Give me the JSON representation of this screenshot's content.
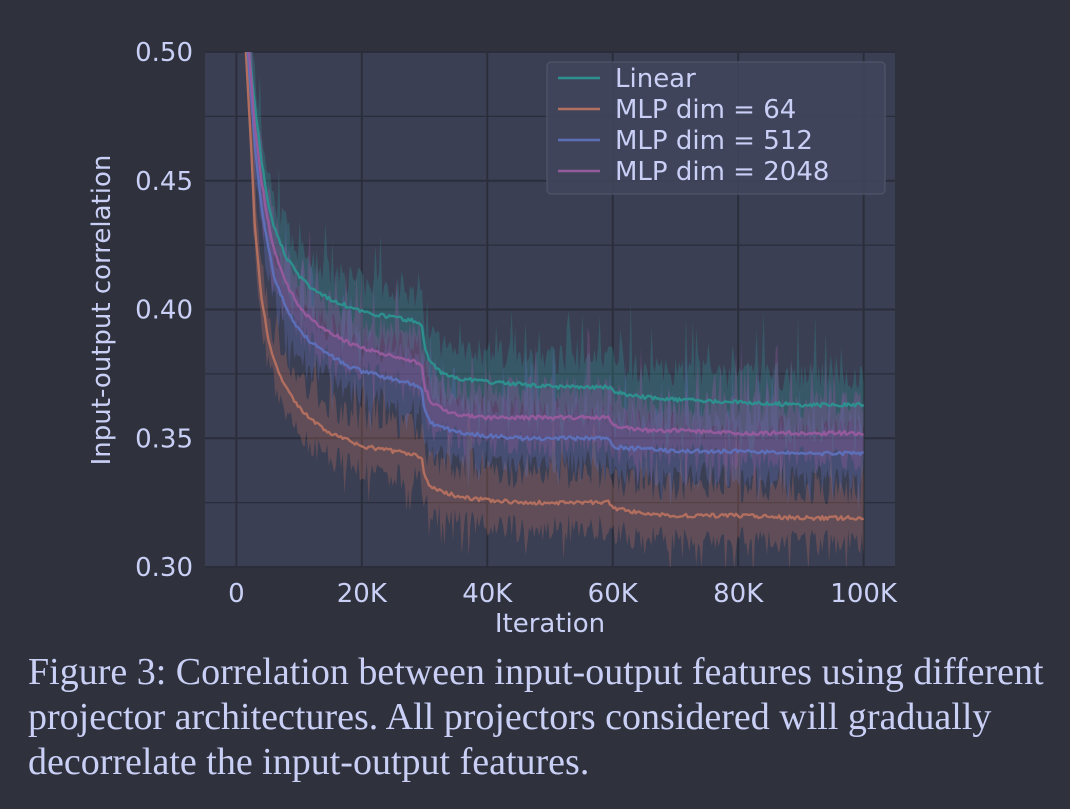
{
  "chart_data": {
    "type": "line",
    "xlabel": "Iteration",
    "ylabel": "Input-output correlation",
    "xlim": [
      -5000,
      105000
    ],
    "ylim": [
      0.3,
      0.5
    ],
    "x_ticks": [
      {
        "value": 0,
        "label": "0"
      },
      {
        "value": 20000,
        "label": "20K"
      },
      {
        "value": 40000,
        "label": "40K"
      },
      {
        "value": 60000,
        "label": "60K"
      },
      {
        "value": 80000,
        "label": "80K"
      },
      {
        "value": 100000,
        "label": "100K"
      }
    ],
    "y_ticks": [
      {
        "value": 0.3,
        "label": "0.30"
      },
      {
        "value": 0.35,
        "label": "0.35"
      },
      {
        "value": 0.4,
        "label": "0.40"
      },
      {
        "value": 0.45,
        "label": "0.45"
      },
      {
        "value": 0.5,
        "label": "0.50"
      }
    ],
    "grid": true,
    "legend_position": "top-right",
    "series": [
      {
        "name": "Linear",
        "color": "#2e8f8f",
        "band_width": 0.012,
        "x": [
          1000,
          2000,
          3000,
          4000,
          5000,
          6000,
          8000,
          10000,
          12000,
          15000,
          18000,
          20000,
          25000,
          29500,
          30000,
          31000,
          33000,
          36000,
          40000,
          45000,
          50000,
          55000,
          59500,
          60000,
          62000,
          65000,
          70000,
          80000,
          90000,
          100000
        ],
        "values": [
          0.52,
          0.5,
          0.478,
          0.458,
          0.442,
          0.432,
          0.42,
          0.413,
          0.408,
          0.404,
          0.401,
          0.399,
          0.397,
          0.395,
          0.385,
          0.379,
          0.375,
          0.373,
          0.372,
          0.371,
          0.37,
          0.37,
          0.37,
          0.368,
          0.367,
          0.366,
          0.365,
          0.364,
          0.363,
          0.363
        ]
      },
      {
        "name": "MLP dim = 64",
        "color": "#b26e5e",
        "band_width": 0.012,
        "x": [
          1000,
          2000,
          3000,
          4000,
          5000,
          6000,
          8000,
          10000,
          12000,
          15000,
          18000,
          20000,
          25000,
          29500,
          30000,
          31000,
          33000,
          36000,
          40000,
          45000,
          50000,
          55000,
          59500,
          60000,
          62000,
          65000,
          70000,
          80000,
          90000,
          100000
        ],
        "values": [
          0.52,
          0.48,
          0.43,
          0.405,
          0.39,
          0.38,
          0.369,
          0.362,
          0.357,
          0.352,
          0.349,
          0.347,
          0.345,
          0.343,
          0.335,
          0.331,
          0.329,
          0.327,
          0.326,
          0.325,
          0.325,
          0.325,
          0.325,
          0.323,
          0.322,
          0.321,
          0.32,
          0.32,
          0.319,
          0.319
        ]
      },
      {
        "name": "MLP dim = 512",
        "color": "#5c6fb8",
        "band_width": 0.012,
        "x": [
          1000,
          2000,
          3000,
          4000,
          5000,
          6000,
          8000,
          10000,
          12000,
          15000,
          18000,
          20000,
          25000,
          29500,
          30000,
          31000,
          33000,
          36000,
          40000,
          45000,
          50000,
          55000,
          59500,
          60000,
          62000,
          65000,
          70000,
          80000,
          90000,
          100000
        ],
        "values": [
          0.52,
          0.495,
          0.462,
          0.44,
          0.425,
          0.413,
          0.4,
          0.392,
          0.387,
          0.382,
          0.378,
          0.376,
          0.373,
          0.37,
          0.361,
          0.356,
          0.354,
          0.352,
          0.351,
          0.35,
          0.35,
          0.35,
          0.35,
          0.347,
          0.346,
          0.346,
          0.345,
          0.345,
          0.344,
          0.344
        ]
      },
      {
        "name": "MLP dim = 2048",
        "color": "#955a9c",
        "band_width": 0.012,
        "x": [
          1000,
          2000,
          3000,
          4000,
          5000,
          6000,
          8000,
          10000,
          12000,
          15000,
          18000,
          20000,
          25000,
          29500,
          30000,
          31000,
          33000,
          36000,
          40000,
          45000,
          50000,
          55000,
          59500,
          60000,
          62000,
          65000,
          70000,
          80000,
          90000,
          100000
        ],
        "values": [
          0.52,
          0.5,
          0.47,
          0.45,
          0.435,
          0.423,
          0.41,
          0.401,
          0.396,
          0.391,
          0.387,
          0.385,
          0.382,
          0.379,
          0.37,
          0.364,
          0.361,
          0.359,
          0.358,
          0.358,
          0.358,
          0.358,
          0.358,
          0.355,
          0.354,
          0.353,
          0.353,
          0.352,
          0.352,
          0.352
        ]
      }
    ]
  },
  "caption": "Figure 3: Correlation between input-output features using different projector architectures. All projectors considered will gradually decorrelate the input-output features.",
  "colors": {
    "figure_bg": "#2f323d",
    "plot_bg": "#3b3f54",
    "grid": "#2b2e3a",
    "text": "#c9cff5"
  }
}
